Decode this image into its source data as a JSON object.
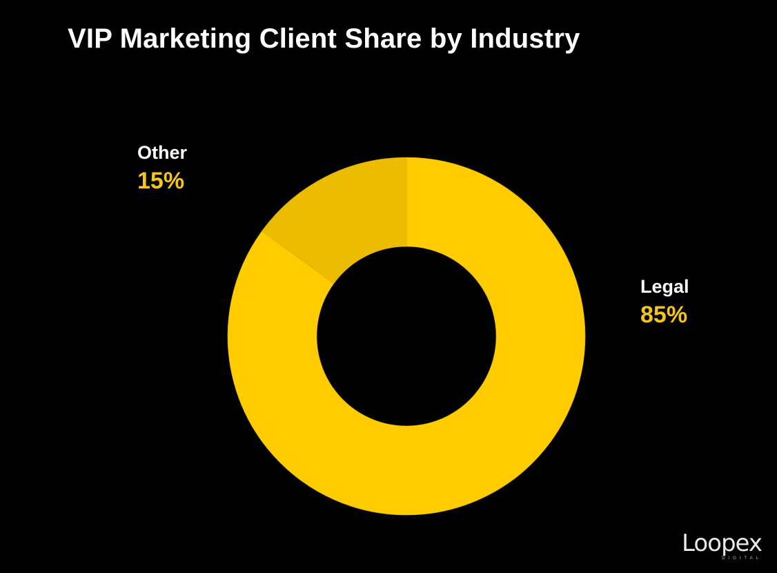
{
  "chart_data": {
    "type": "pie",
    "title": "VIP Marketing Client Share by Industry",
    "donut": true,
    "slices": [
      {
        "label": "Legal",
        "value": 85,
        "display": "85%",
        "color": "#FFCC00"
      },
      {
        "label": "Other",
        "value": 15,
        "display": "15%",
        "color": "#EBBC00"
      }
    ],
    "label_color": "#FFFFFF",
    "value_color": "#F5C518",
    "background": "#000000"
  },
  "watermark": {
    "brand": "Loopex",
    "sub": "DIGITAL"
  }
}
